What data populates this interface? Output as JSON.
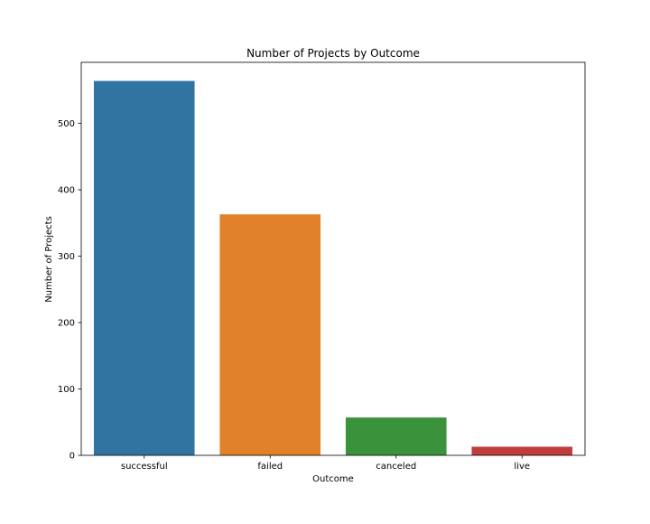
{
  "chart_data": {
    "type": "bar",
    "title": "Number of Projects by Outcome",
    "xlabel": "Outcome",
    "ylabel": "Number of Projects",
    "categories": [
      "successful",
      "failed",
      "canceled",
      "live"
    ],
    "values": [
      564,
      363,
      57,
      13
    ],
    "colors": [
      "#3274a1",
      "#e1812c",
      "#3a923a",
      "#c03d3e"
    ],
    "ylim": [
      0,
      592
    ],
    "yticks": [
      0,
      100,
      200,
      300,
      400,
      500
    ],
    "grid": false,
    "legend": "none"
  }
}
